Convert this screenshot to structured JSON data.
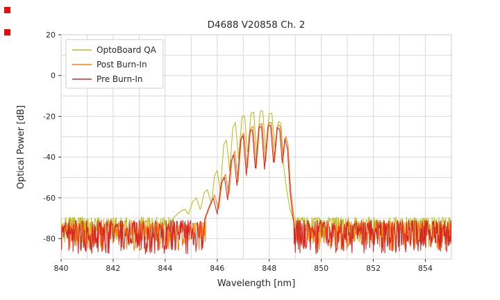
{
  "chart_data": {
    "type": "line",
    "title": "D4688 V20858 Ch. 2",
    "xlabel": "Wavelength [nm]",
    "ylabel": "Optical Power [dB]",
    "xlim": [
      840,
      855
    ],
    "ylim": [
      -90,
      20
    ],
    "xticks": [
      840,
      842,
      844,
      846,
      848,
      850,
      852,
      854
    ],
    "yticks": [
      20,
      0,
      -20,
      -40,
      -60,
      -80
    ],
    "grid": true,
    "grid_spacing": {
      "x": 1,
      "y": 10
    },
    "legend": {
      "position": "upper left"
    },
    "series": [
      {
        "name": "OptoBoard QA",
        "color": "#bcbd22",
        "noise_floor": {
          "top_db": -69.5,
          "spike_depth_db": 13
        },
        "points": [
          [
            844.3,
            -70
          ],
          [
            844.55,
            -67
          ],
          [
            844.75,
            -65.5
          ],
          [
            844.9,
            -68
          ],
          [
            845.05,
            -62
          ],
          [
            845.2,
            -60
          ],
          [
            845.35,
            -66
          ],
          [
            845.5,
            -57.5
          ],
          [
            845.62,
            -56
          ],
          [
            845.78,
            -63
          ],
          [
            845.9,
            -49
          ],
          [
            846.0,
            -46.5
          ],
          [
            846.12,
            -57
          ],
          [
            846.25,
            -34
          ],
          [
            846.35,
            -31.5
          ],
          [
            846.48,
            -47
          ],
          [
            846.6,
            -25.5
          ],
          [
            846.7,
            -23
          ],
          [
            846.82,
            -41
          ],
          [
            846.95,
            -20.5
          ],
          [
            847.05,
            -19.5
          ],
          [
            847.17,
            -39
          ],
          [
            847.3,
            -18.5
          ],
          [
            847.4,
            -18
          ],
          [
            847.52,
            -38.5
          ],
          [
            847.65,
            -17.5
          ],
          [
            847.75,
            -17.3
          ],
          [
            847.87,
            -37.5
          ],
          [
            848.0,
            -18.8
          ],
          [
            848.1,
            -18.5
          ],
          [
            848.22,
            -35.5
          ],
          [
            848.35,
            -22.5
          ],
          [
            848.45,
            -23.5
          ],
          [
            848.55,
            -44
          ],
          [
            848.68,
            -57
          ],
          [
            848.8,
            -66
          ],
          [
            848.95,
            -71
          ]
        ]
      },
      {
        "name": "Post Burn-In",
        "color": "#ff7f0e",
        "noise_floor": {
          "top_db": -72,
          "spike_depth_db": 14
        },
        "points": [
          [
            845.55,
            -70
          ],
          [
            845.75,
            -63
          ],
          [
            845.9,
            -58.5
          ],
          [
            846.05,
            -66
          ],
          [
            846.2,
            -51
          ],
          [
            846.32,
            -48.5
          ],
          [
            846.45,
            -59
          ],
          [
            846.58,
            -40
          ],
          [
            846.68,
            -37
          ],
          [
            846.8,
            -52
          ],
          [
            846.93,
            -30
          ],
          [
            847.03,
            -28
          ],
          [
            847.15,
            -47
          ],
          [
            847.28,
            -26
          ],
          [
            847.38,
            -25
          ],
          [
            847.5,
            -45.5
          ],
          [
            847.63,
            -24
          ],
          [
            847.73,
            -23.5
          ],
          [
            847.85,
            -44
          ],
          [
            847.98,
            -23.2
          ],
          [
            848.08,
            -23
          ],
          [
            848.2,
            -42.5
          ],
          [
            848.33,
            -24
          ],
          [
            848.43,
            -25
          ],
          [
            848.53,
            -41
          ],
          [
            848.63,
            -29.5
          ],
          [
            848.72,
            -34
          ],
          [
            848.82,
            -55
          ],
          [
            848.95,
            -70
          ]
        ]
      },
      {
        "name": "Pre Burn-In",
        "color": "#d62728",
        "noise_floor": {
          "top_db": -71,
          "spike_depth_db": 16.5
        },
        "points": [
          [
            845.5,
            -71
          ],
          [
            845.7,
            -64
          ],
          [
            845.85,
            -60
          ],
          [
            846.0,
            -68
          ],
          [
            846.15,
            -53
          ],
          [
            846.28,
            -50
          ],
          [
            846.4,
            -61
          ],
          [
            846.53,
            -42
          ],
          [
            846.64,
            -39
          ],
          [
            846.76,
            -54
          ],
          [
            846.9,
            -31.5
          ],
          [
            847.0,
            -29.5
          ],
          [
            847.12,
            -49
          ],
          [
            847.25,
            -27.5
          ],
          [
            847.35,
            -26.5
          ],
          [
            847.47,
            -47
          ],
          [
            847.6,
            -25.5
          ],
          [
            847.7,
            -25
          ],
          [
            847.82,
            -46
          ],
          [
            847.95,
            -24.5
          ],
          [
            848.05,
            -24.3
          ],
          [
            848.17,
            -44
          ],
          [
            848.3,
            -25.5
          ],
          [
            848.4,
            -26.5
          ],
          [
            848.5,
            -43
          ],
          [
            848.6,
            -31
          ],
          [
            848.7,
            -36
          ],
          [
            848.8,
            -57
          ],
          [
            848.92,
            -71
          ]
        ]
      }
    ]
  },
  "ui": {
    "marker_color": "#e01010"
  }
}
